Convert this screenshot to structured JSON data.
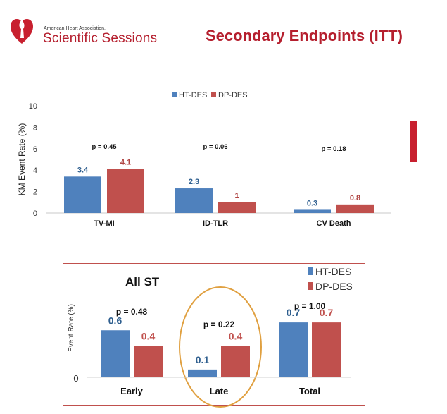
{
  "header": {
    "org": "American Heart Association.",
    "event": "Scientific Sessions",
    "title": "Secondary Endpoints (ITT)",
    "logo_icon": "heart-torch-icon"
  },
  "colors": {
    "ht": "#4f81bd",
    "dp": "#c0504d",
    "brand": "#b51f2e",
    "ellipse": "#e0a040"
  },
  "chart_data": [
    {
      "type": "bar",
      "categories": [
        "TV-MI",
        "ID-TLR",
        "CV Death"
      ],
      "series": [
        {
          "name": "HT-DES",
          "values": [
            3.4,
            2.3,
            0.3
          ],
          "labels": [
            "3.4",
            "2.3",
            "0.3"
          ]
        },
        {
          "name": "DP-DES",
          "values": [
            4.1,
            1,
            0.8
          ],
          "labels": [
            "4.1",
            "1",
            "0.8"
          ]
        }
      ],
      "pvalues": [
        "p = 0.45",
        "p = 0.06",
        "p = 0.18"
      ],
      "ylabel": "KM Event Rate (%)",
      "ylim": [
        0,
        10
      ],
      "yticks": [
        "0",
        "2",
        "4",
        "6",
        "8",
        "10"
      ],
      "legend_position": "top-center"
    },
    {
      "type": "bar",
      "title": "All ST",
      "categories": [
        "Early",
        "Late",
        "Total"
      ],
      "series": [
        {
          "name": "HT-DES",
          "values": [
            0.6,
            0.1,
            0.7
          ],
          "labels": [
            "0.6",
            "0.1",
            "0.7"
          ]
        },
        {
          "name": "DP-DES",
          "values": [
            0.4,
            0.4,
            0.7
          ],
          "labels": [
            "0.4",
            "0.4",
            "0.7"
          ]
        }
      ],
      "pvalues": [
        "p = 0.48",
        "p = 0.22",
        "p = 1.00"
      ],
      "ylabel": "Event Rate (%)",
      "ylim": [
        0,
        0.8
      ],
      "yticks": [
        "0"
      ],
      "legend_position": "top-right",
      "highlight": "Late"
    }
  ]
}
